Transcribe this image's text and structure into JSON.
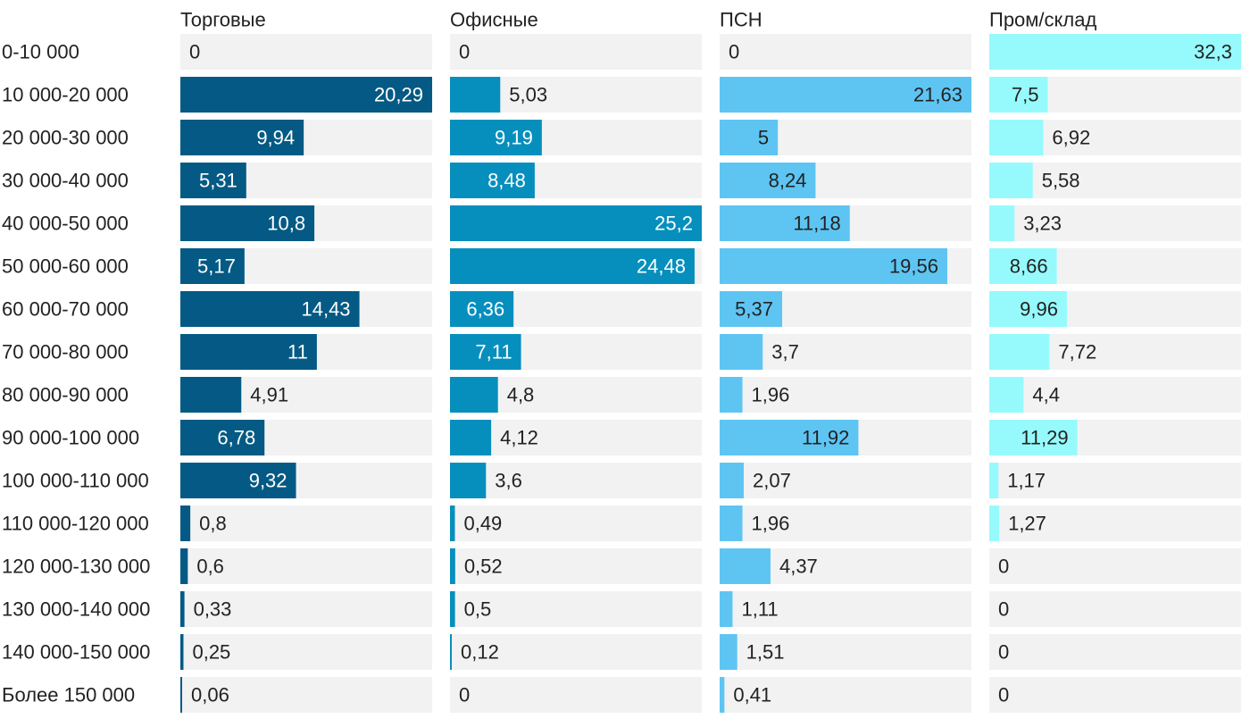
{
  "chart_data": {
    "type": "bar",
    "orientation": "horizontal",
    "layout": "small-multiples",
    "categories": [
      "0-10 000",
      "10 000-20 000",
      "20 000-30 000",
      "30 000-40 000",
      "40 000-50 000",
      "50 000-60 000",
      "60 000-70 000",
      "70 000-80 000",
      "80 000-90 000",
      "90 000-100 000",
      "100 000-110 000",
      "110 000-120 000",
      "120 000-130 000",
      "130 000-140 000",
      "140 000-150 000",
      "Более 150 000"
    ],
    "series": [
      {
        "name": "Торговые",
        "color": "#045a84",
        "values": [
          0,
          20.29,
          9.94,
          5.31,
          10.8,
          5.17,
          14.43,
          11,
          4.91,
          6.78,
          9.32,
          0.8,
          0.6,
          0.33,
          0.25,
          0.06
        ],
        "labels": [
          "0",
          "20,29",
          "9,94",
          "5,31",
          "10,8",
          "5,17",
          "14,43",
          "11",
          "4,91",
          "6,78",
          "9,32",
          "0,8",
          "0,6",
          "0,33",
          "0,25",
          "0,06"
        ],
        "xlim": [
          0,
          20.29
        ]
      },
      {
        "name": "Офисные",
        "color": "#068fbd",
        "values": [
          0,
          5.03,
          9.19,
          8.48,
          25.2,
          24.48,
          6.36,
          7.11,
          4.8,
          4.12,
          3.6,
          0.49,
          0.52,
          0.5,
          0.12,
          0
        ],
        "labels": [
          "0",
          "5,03",
          "9,19",
          "8,48",
          "25,2",
          "24,48",
          "6,36",
          "7,11",
          "4,8",
          "4,12",
          "3,6",
          "0,49",
          "0,52",
          "0,5",
          "0,12",
          "0"
        ],
        "xlim": [
          0,
          25.2
        ]
      },
      {
        "name": "ПСН",
        "color": "#5ec5f3",
        "values": [
          0,
          21.63,
          5,
          8.24,
          11.18,
          19.56,
          5.37,
          3.7,
          1.96,
          11.92,
          2.07,
          1.96,
          4.37,
          1.11,
          1.51,
          0.41
        ],
        "labels": [
          "0",
          "21,63",
          "5",
          "8,24",
          "11,18",
          "19,56",
          "5,37",
          "3,7",
          "1,96",
          "11,92",
          "2,07",
          "1,96",
          "4,37",
          "1,11",
          "1,51",
          "0,41"
        ],
        "xlim": [
          0,
          21.63
        ]
      },
      {
        "name": "Пром/склад",
        "color": "#96fafc",
        "values": [
          32.3,
          7.5,
          6.92,
          5.58,
          3.23,
          8.66,
          9.96,
          7.72,
          4.4,
          11.29,
          1.17,
          1.27,
          0,
          0,
          0,
          0
        ],
        "labels": [
          "32,3",
          "7,5",
          "6,92",
          "5,58",
          "3,23",
          "8,66",
          "9,96",
          "7,72",
          "4,4",
          "11,29",
          "1,17",
          "1,27",
          "0",
          "0",
          "0",
          "0"
        ],
        "xlim": [
          0,
          32.3
        ]
      }
    ],
    "title": "",
    "xlabel": "",
    "ylabel": "",
    "grid": false,
    "legend": "none",
    "track_color": "#f2f2f2",
    "label_color_inside": "#ffffff",
    "label_color_outside": "#222222"
  }
}
